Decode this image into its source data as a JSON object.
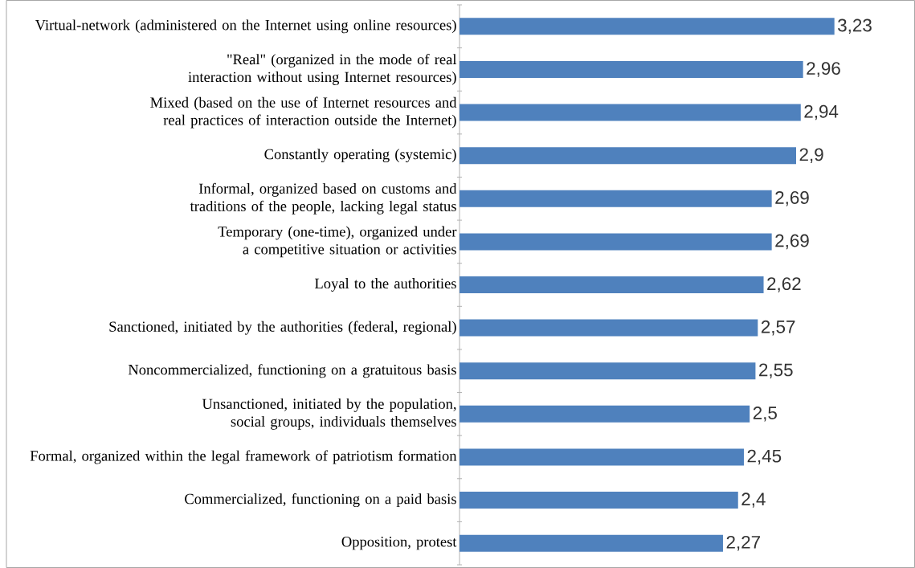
{
  "chart_data": {
    "type": "bar",
    "orientation": "horizontal",
    "categories": [
      "Virtual-network (administered on the Internet using online resources)",
      "\"Real\" (organized in the mode of real interaction without using Internet resources)",
      "Mixed (based on the use of Internet resources and real practices of interaction outside the Internet)",
      "Constantly operating (systemic)",
      "Informal, organized based on customs and traditions of the people, lacking legal status",
      "Temporary (one-time), organized under a competitive situation or activities",
      "Loyal to the authorities",
      "Sanctioned, initiated by the authorities (federal, regional)",
      "Noncommercialized, functioning on a gratuitous basis",
      "Unsanctioned, initiated by the population, social groups, individuals themselves",
      "Formal, organized within the legal framework of patriotism formation",
      "Commercialized, functioning on a paid basis",
      "Opposition, protest"
    ],
    "values": [
      3.23,
      2.96,
      2.94,
      2.9,
      2.69,
      2.69,
      2.62,
      2.57,
      2.55,
      2.5,
      2.45,
      2.4,
      2.27
    ],
    "value_labels": [
      "3,23",
      "2,96",
      "2,94",
      "2,9",
      "2,69",
      "2,69",
      "2,62",
      "2,57",
      "2,55",
      "2,5",
      "2,45",
      "2,4",
      "2,27"
    ],
    "color": "#4f81bd"
  }
}
